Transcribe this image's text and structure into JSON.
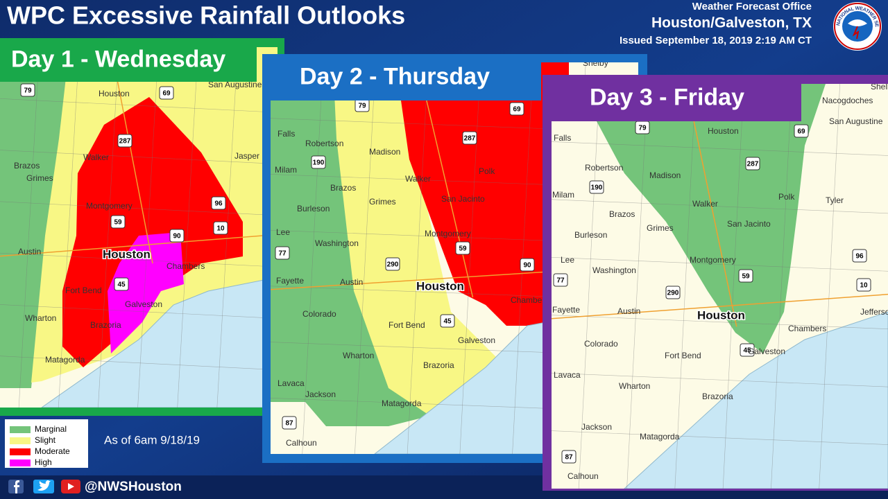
{
  "header": {
    "title": "WPC Excessive Rainfall Outlooks",
    "office_label": "Weather Forecast Office",
    "office": "Houston/Galveston, TX",
    "issued": "Issued September 18, 2019 2:19 AM CT"
  },
  "logo_text": "NATIONAL WEATHER SERVICE",
  "legend": {
    "items": [
      {
        "label": "Marginal",
        "color": "#74c47a"
      },
      {
        "label": "Slight",
        "color": "#f8f785"
      },
      {
        "label": "Moderate",
        "color": "#ff0000"
      },
      {
        "label": "High",
        "color": "#ff00ff"
      }
    ]
  },
  "as_of": "As of 6am 9/18/19",
  "footer": {
    "handle": "@NWSHouston"
  },
  "panels": [
    {
      "title": "Day 1 - Wednesday",
      "color": "#19a84a",
      "places": [
        "Houston",
        "San Augustine",
        "Walker",
        "Brazos",
        "Grimes",
        "Montgomery",
        "Jasper",
        "Austin",
        "Houston",
        "Fort Bend",
        "Galveston",
        "Chambers",
        "Wharton",
        "Brazoria",
        "Matagorda"
      ],
      "shields": [
        "79",
        "69",
        "287",
        "59",
        "90",
        "96",
        "10",
        "45"
      ]
    },
    {
      "title": "Day 2 - Thursday",
      "color": "#1b6fc4",
      "places": [
        "Shelby",
        "Falls",
        "Robertson",
        "Madison",
        "Milam",
        "Burleson",
        "Brazos",
        "Grimes",
        "Walker",
        "Polk",
        "San Jacinto",
        "Montgomery",
        "Lee",
        "Washington",
        "Fayette",
        "Austin",
        "Houston",
        "Colorado",
        "Fort Bend",
        "Galveston",
        "Chambers",
        "Wharton",
        "Brazoria",
        "Lavaca",
        "Jackson",
        "Matagorda",
        "Calhoun"
      ],
      "shields": [
        "79",
        "69",
        "287",
        "190",
        "77",
        "290",
        "59",
        "90",
        "45",
        "87"
      ]
    },
    {
      "title": "Day 3 - Friday",
      "color": "#7030a0",
      "places": [
        "Shelby",
        "Nacogdoches",
        "Houston",
        "Falls",
        "San Augustine",
        "Robertson",
        "Madison",
        "Milam",
        "Walker",
        "Tyler",
        "Brazos",
        "Polk",
        "Burleson",
        "Grimes",
        "San Jacinto",
        "Lee",
        "Montgomery",
        "Washington",
        "Fayette",
        "Austin",
        "Houston",
        "Jefferson",
        "Chambers",
        "Colorado",
        "Fort Bend",
        "Galveston",
        "Lavaca",
        "Wharton",
        "Brazoria",
        "Jackson",
        "Matagorda",
        "Calhoun"
      ],
      "shields": [
        "79",
        "69",
        "287",
        "190",
        "77",
        "290",
        "59",
        "96",
        "10",
        "45",
        "87"
      ]
    }
  ]
}
